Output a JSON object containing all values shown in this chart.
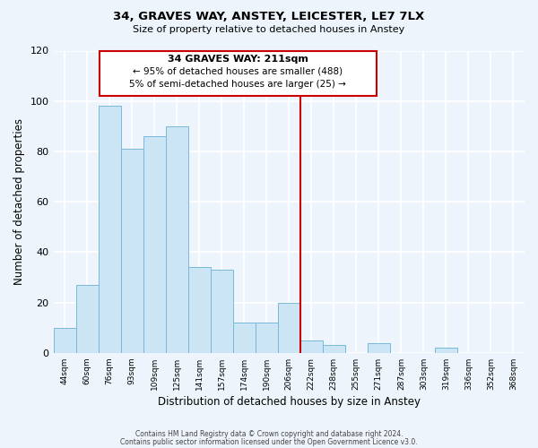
{
  "title": "34, GRAVES WAY, ANSTEY, LEICESTER, LE7 7LX",
  "subtitle": "Size of property relative to detached houses in Anstey",
  "xlabel": "Distribution of detached houses by size in Anstey",
  "ylabel": "Number of detached properties",
  "bar_labels": [
    "44sqm",
    "60sqm",
    "76sqm",
    "93sqm",
    "109sqm",
    "125sqm",
    "141sqm",
    "157sqm",
    "174sqm",
    "190sqm",
    "206sqm",
    "222sqm",
    "238sqm",
    "255sqm",
    "271sqm",
    "287sqm",
    "303sqm",
    "319sqm",
    "336sqm",
    "352sqm",
    "368sqm"
  ],
  "bar_values": [
    10,
    27,
    98,
    81,
    86,
    90,
    34,
    33,
    12,
    12,
    20,
    5,
    3,
    0,
    4,
    0,
    0,
    2,
    0,
    0,
    0
  ],
  "bar_color": "#cce5f5",
  "bar_edge_color": "#7ab8d8",
  "vline_color": "#cc0000",
  "annotation_title": "34 GRAVES WAY: 211sqm",
  "annotation_line1": "← 95% of detached houses are smaller (488)",
  "annotation_line2": "5% of semi-detached houses are larger (25) →",
  "annotation_box_color": "#cc0000",
  "ylim": [
    0,
    120
  ],
  "yticks": [
    0,
    20,
    40,
    60,
    80,
    100,
    120
  ],
  "footer1": "Contains HM Land Registry data © Crown copyright and database right 2024.",
  "footer2": "Contains public sector information licensed under the Open Government Licence v3.0.",
  "bg_color": "#eef4fb",
  "plot_bg_color": "#eef4fb"
}
